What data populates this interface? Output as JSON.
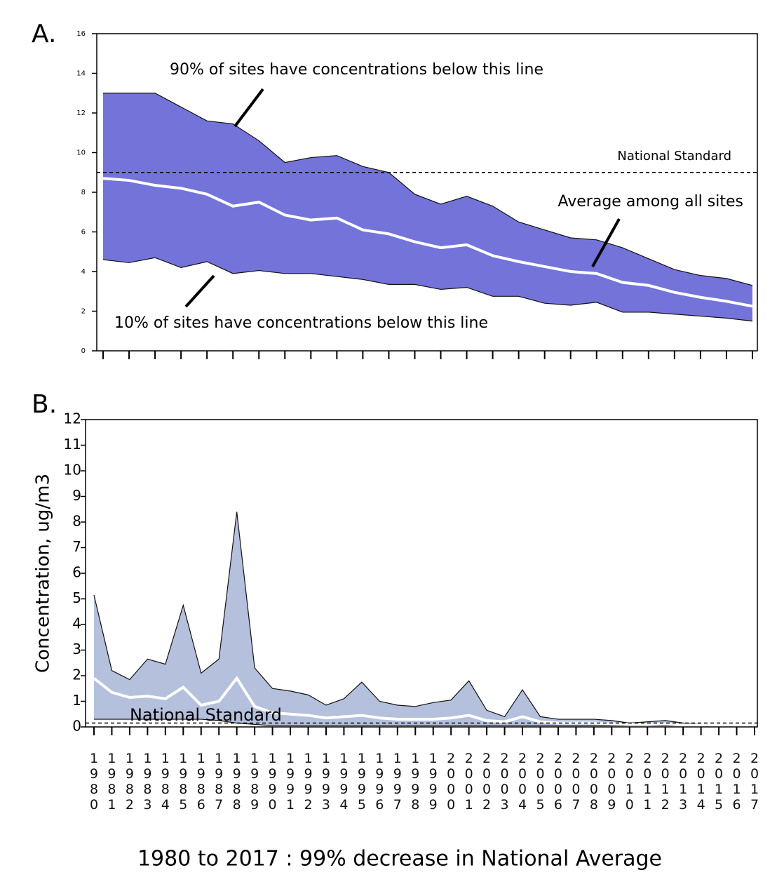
{
  "chart_data": [
    {
      "type": "band",
      "panel_label": "A.",
      "categories": [
        null,
        null,
        null,
        null,
        null,
        null,
        null,
        null,
        null,
        null,
        null,
        null,
        null,
        null,
        null,
        null,
        null,
        null,
        null,
        null,
        null,
        null,
        null,
        null,
        null,
        null
      ],
      "upper": [
        13.0,
        13.0,
        13.0,
        12.3,
        11.6,
        11.45,
        10.6,
        9.5,
        9.75,
        9.85,
        9.3,
        9.0,
        7.9,
        7.4,
        7.8,
        7.3,
        6.5,
        6.1,
        5.7,
        5.6,
        5.2,
        4.65,
        4.1,
        3.8,
        3.65,
        3.3
      ],
      "lower": [
        4.6,
        4.45,
        4.7,
        4.2,
        4.5,
        3.9,
        4.05,
        3.9,
        3.9,
        3.75,
        3.6,
        3.35,
        3.35,
        3.1,
        3.2,
        2.75,
        2.75,
        2.4,
        2.3,
        2.45,
        1.95,
        1.95,
        1.85,
        1.75,
        1.65,
        1.5
      ],
      "average": [
        8.7,
        8.6,
        8.35,
        8.2,
        7.9,
        7.3,
        7.5,
        6.85,
        6.6,
        6.7,
        6.1,
        5.9,
        5.5,
        5.2,
        5.35,
        4.8,
        4.5,
        4.25,
        4.0,
        3.9,
        3.45,
        3.3,
        2.95,
        2.7,
        2.5,
        2.25
      ],
      "reference_line": 9,
      "band_color": "#7373d9",
      "line_color": "#ffffff",
      "ylim": [
        0,
        16
      ],
      "yticks": [
        0,
        2,
        4,
        6,
        8,
        10,
        12,
        14,
        16
      ],
      "annotations": [
        "90% of sites have concentrations below this line",
        "National Standard",
        "Average among all sites",
        "10% of sites have concentrations below this line"
      ]
    },
    {
      "type": "band",
      "panel_label": "B.",
      "ylabel": "Concentration, ug/m3",
      "caption": "1980 to 2017 :  99% decrease in National Average",
      "categories": [
        "1980",
        "1981",
        "1982",
        "1983",
        "1984",
        "1985",
        "1986",
        "1987",
        "1988",
        "1989",
        "1990",
        "1991",
        "1992",
        "1993",
        "1994",
        "1995",
        "1996",
        "1997",
        "1998",
        "1999",
        "2000",
        "2001",
        "2002",
        "2003",
        "2004",
        "2005",
        "2006",
        "2007",
        "2008",
        "2009",
        "2010",
        "2011",
        "2012",
        "2013",
        "2014",
        "2015",
        "2016",
        "2017"
      ],
      "upper": [
        5.15,
        2.2,
        1.85,
        2.65,
        2.45,
        4.75,
        2.1,
        2.65,
        8.4,
        2.3,
        1.5,
        1.4,
        1.25,
        0.85,
        1.1,
        1.75,
        1.0,
        0.85,
        0.8,
        0.95,
        1.05,
        1.8,
        0.65,
        0.4,
        1.45,
        0.4,
        0.3,
        0.3,
        0.3,
        0.25,
        0.15,
        0.2,
        0.25,
        0.15,
        0.1,
        0.05,
        null,
        null
      ],
      "lower": [
        0.3,
        0.3,
        0.3,
        0.3,
        0.3,
        0.3,
        0.3,
        0.25,
        0.15,
        0.1,
        0.05,
        0.05,
        0.05,
        0.05,
        0.05,
        0.05,
        0.05,
        0.05,
        0.05,
        0.05,
        0.05,
        0.05,
        0.05,
        0.05,
        0.05,
        0.05,
        0.05,
        0.05,
        0.05,
        0.05,
        0.05,
        0.05,
        0.05,
        0.05,
        0.05,
        0.05,
        null,
        null
      ],
      "average": [
        1.9,
        1.35,
        1.15,
        1.2,
        1.1,
        1.55,
        0.85,
        1.0,
        1.9,
        0.8,
        0.55,
        0.5,
        0.45,
        0.35,
        0.4,
        0.45,
        0.35,
        0.3,
        0.3,
        0.3,
        0.35,
        0.45,
        0.25,
        0.2,
        0.4,
        0.2,
        0.15,
        0.15,
        0.15,
        0.12,
        0.1,
        0.1,
        0.12,
        0.08,
        0.06,
        0.03,
        null,
        null
      ],
      "reference_line": 0.15,
      "band_color": "#b4c0dc",
      "line_color": "#ffffff",
      "ylim": [
        0,
        12
      ],
      "yticks": [
        0,
        1,
        2,
        3,
        4,
        5,
        6,
        7,
        8,
        9,
        10,
        11,
        12
      ],
      "annotations": [
        "National Standard"
      ]
    }
  ]
}
